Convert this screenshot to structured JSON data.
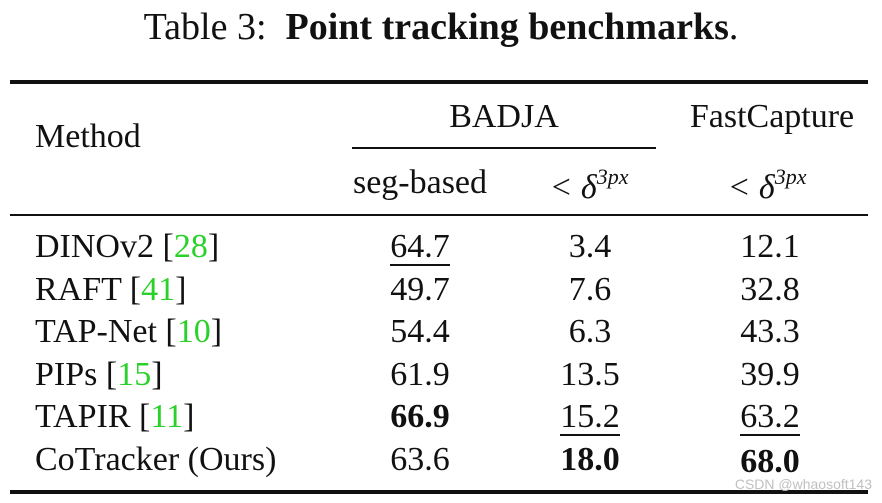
{
  "caption": {
    "prefix": "Table 3:",
    "title": "Point tracking benchmarks",
    "suffix": "."
  },
  "headers": {
    "method": "Method",
    "badja": "BADJA",
    "fastcapture": "FastCapture",
    "seg_based": "seg-based",
    "delta_symbol": "< δ",
    "delta_sup": "3px"
  },
  "rows": [
    {
      "name": "DINOv2 [",
      "ref": "28",
      "close": "]",
      "seg": "64.7",
      "badja_delta": "3.4",
      "fast_delta": "12.1"
    },
    {
      "name": "RAFT [",
      "ref": "41",
      "close": "]",
      "seg": "49.7",
      "badja_delta": "7.6",
      "fast_delta": "32.8"
    },
    {
      "name": "TAP-Net [",
      "ref": "10",
      "close": "]",
      "seg": "54.4",
      "badja_delta": "6.3",
      "fast_delta": "43.3"
    },
    {
      "name": "PIPs [",
      "ref": "15",
      "close": "]",
      "seg": "61.9",
      "badja_delta": "13.5",
      "fast_delta": "39.9"
    },
    {
      "name": "TAPIR [",
      "ref": "11",
      "close": "]",
      "seg": "66.9",
      "badja_delta": "15.2",
      "fast_delta": "63.2"
    },
    {
      "name": "CoTracker (Ours)",
      "seg": "63.6",
      "badja_delta": "18.0",
      "fast_delta": "68.0"
    }
  ],
  "watermark": "CSDN @whaosoft143",
  "colors": {
    "reference": "#2bd12b",
    "text": "#111111",
    "watermark": "#c0c0c0"
  }
}
